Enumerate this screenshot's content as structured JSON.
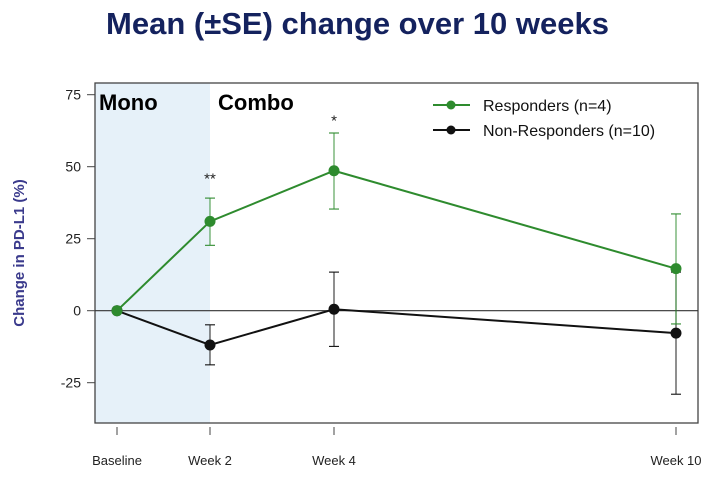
{
  "chart_data": {
    "type": "line",
    "title": "Mean (±SE) change over 10 weeks",
    "xlabel": "",
    "ylabel": "Change in PD-L1 (%)",
    "categories": [
      "Baseline",
      "Week 2",
      "Week 4",
      "Week 10"
    ],
    "yticks": [
      75,
      50,
      25,
      0,
      -25
    ],
    "ylim": [
      -39,
      79
    ],
    "grid": false,
    "legend_position": "top-right",
    "phase_labels": [
      "Mono",
      "Combo"
    ],
    "phase_shading": {
      "label": "Mono",
      "from": "Baseline",
      "to": "Week 2",
      "color": "#e6f1f9"
    },
    "reference_line": 0,
    "series": [
      {
        "name": "Responders (n=4)",
        "color": "#2e8b2e",
        "values": [
          0,
          31.0,
          48.6,
          14.6
        ],
        "se_upper": [
          null,
          39.1,
          61.7,
          33.6
        ],
        "se_lower": [
          null,
          22.7,
          35.3,
          -4.6
        ]
      },
      {
        "name": "Non-Responders (n=10)",
        "color": "#111111",
        "values": [
          0,
          -11.9,
          0.5,
          -7.8
        ],
        "se_upper": [
          null,
          -4.9,
          13.4,
          13.4
        ],
        "se_lower": [
          null,
          -18.8,
          -12.4,
          -29.0
        ]
      }
    ],
    "annotations": [
      {
        "category": "Week 2",
        "text": "**"
      },
      {
        "category": "Week 4",
        "text": "*"
      }
    ]
  }
}
